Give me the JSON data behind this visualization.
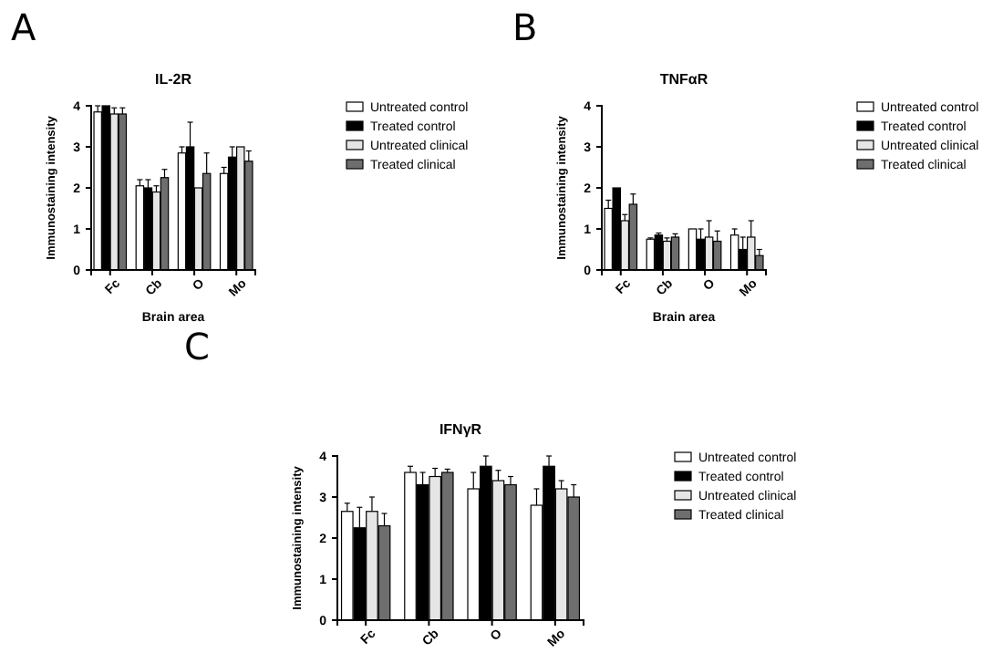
{
  "chart_data": [
    {
      "type": "bar",
      "title": "IL-2R",
      "xlabel": "Brain area",
      "ylabel": "Immunostaining intensity",
      "annotations": [
        "A"
      ],
      "categories": [
        "Fc",
        "Cb",
        "O",
        "Mo"
      ],
      "ylim": [
        0,
        4
      ],
      "yticks": [
        0,
        1,
        2,
        3,
        4
      ],
      "legend": "right",
      "grid": false,
      "series": [
        {
          "name": "Untreated control",
          "color": "#ffffff",
          "values": [
            3.85,
            2.05,
            2.85,
            2.35
          ],
          "errors": [
            [
              3.85,
              4.0
            ],
            [
              2.05,
              2.2
            ],
            [
              2.85,
              3.0
            ],
            [
              2.35,
              2.5
            ]
          ]
        },
        {
          "name": "Treated control",
          "color": "#000000",
          "values": [
            4.0,
            2.0,
            3.0,
            2.75
          ],
          "errors": [
            null,
            [
              2.0,
              2.2
            ],
            [
              3.0,
              3.6
            ],
            [
              2.75,
              3.0
            ]
          ]
        },
        {
          "name": "Untreated clinical",
          "color": "#e6e6e6",
          "values": [
            3.8,
            1.9,
            2.0,
            3.0
          ],
          "errors": [
            [
              3.8,
              3.95
            ],
            [
              1.9,
              2.05
            ],
            null,
            null
          ]
        },
        {
          "name": "Treated clinical",
          "color": "#6e6e6e",
          "values": [
            3.8,
            2.25,
            2.35,
            2.65
          ],
          "errors": [
            [
              3.8,
              3.95
            ],
            [
              2.25,
              2.45
            ],
            [
              2.35,
              2.85
            ],
            [
              2.65,
              2.9
            ]
          ]
        }
      ]
    },
    {
      "type": "bar",
      "title": "TNFαR",
      "xlabel": "Brain area",
      "ylabel": "Immunostaining intensity",
      "annotations": [
        "B"
      ],
      "categories": [
        "Fc",
        "Cb",
        "O",
        "Mo"
      ],
      "ylim": [
        0,
        4
      ],
      "yticks": [
        0,
        1,
        2,
        3,
        4
      ],
      "legend": "right",
      "grid": false,
      "series": [
        {
          "name": "Untreated control",
          "color": "#ffffff",
          "values": [
            1.5,
            0.75,
            1.0,
            0.85
          ],
          "errors": [
            [
              1.5,
              1.7
            ],
            [
              0.75,
              0.78
            ],
            null,
            [
              0.85,
              1.0
            ]
          ]
        },
        {
          "name": "Treated control",
          "color": "#000000",
          "values": [
            2.0,
            0.85,
            0.75,
            0.5
          ],
          "errors": [
            null,
            [
              0.85,
              0.9
            ],
            [
              0.75,
              1.0
            ],
            [
              0.5,
              0.8
            ]
          ]
        },
        {
          "name": "Untreated clinical",
          "color": "#e6e6e6",
          "values": [
            1.2,
            0.7,
            0.8,
            0.8
          ],
          "errors": [
            [
              1.2,
              1.35
            ],
            [
              0.7,
              0.78
            ],
            [
              0.8,
              1.2
            ],
            [
              0.8,
              1.2
            ]
          ]
        },
        {
          "name": "Treated clinical",
          "color": "#6e6e6e",
          "values": [
            1.6,
            0.8,
            0.7,
            0.35
          ],
          "errors": [
            [
              1.6,
              1.85
            ],
            [
              0.8,
              0.88
            ],
            [
              0.7,
              0.95
            ],
            [
              0.35,
              0.5
            ]
          ]
        }
      ]
    },
    {
      "type": "bar",
      "title": "IFNγR",
      "ylabel": "Immunostaining intensity",
      "annotations": [
        "C"
      ],
      "categories": [
        "Fc",
        "Cb",
        "O",
        "Mo"
      ],
      "ylim": [
        0,
        4
      ],
      "yticks": [
        0,
        1,
        2,
        3,
        4
      ],
      "legend": "right",
      "grid": false,
      "series": [
        {
          "name": "Untreated control",
          "color": "#ffffff",
          "values": [
            2.65,
            3.6,
            3.2,
            2.8
          ],
          "errors": [
            [
              2.65,
              2.85
            ],
            [
              3.6,
              3.75
            ],
            [
              3.2,
              3.6
            ],
            [
              2.8,
              3.2
            ]
          ]
        },
        {
          "name": "Treated control",
          "color": "#000000",
          "values": [
            2.25,
            3.3,
            3.75,
            3.75
          ],
          "errors": [
            [
              2.25,
              2.75
            ],
            [
              3.3,
              3.6
            ],
            [
              3.75,
              4.0
            ],
            [
              3.75,
              4.0
            ]
          ]
        },
        {
          "name": "Untreated clinical",
          "color": "#e6e6e6",
          "values": [
            2.65,
            3.5,
            3.4,
            3.2
          ],
          "errors": [
            [
              2.65,
              3.0
            ],
            [
              3.5,
              3.7
            ],
            [
              3.4,
              3.65
            ],
            [
              3.2,
              3.4
            ]
          ]
        },
        {
          "name": "Treated clinical",
          "color": "#6e6e6e",
          "values": [
            2.3,
            3.6,
            3.3,
            3.0
          ],
          "errors": [
            [
              2.3,
              2.6
            ],
            [
              3.6,
              3.68
            ],
            [
              3.3,
              3.5
            ],
            [
              3.0,
              3.3
            ]
          ]
        }
      ]
    }
  ]
}
